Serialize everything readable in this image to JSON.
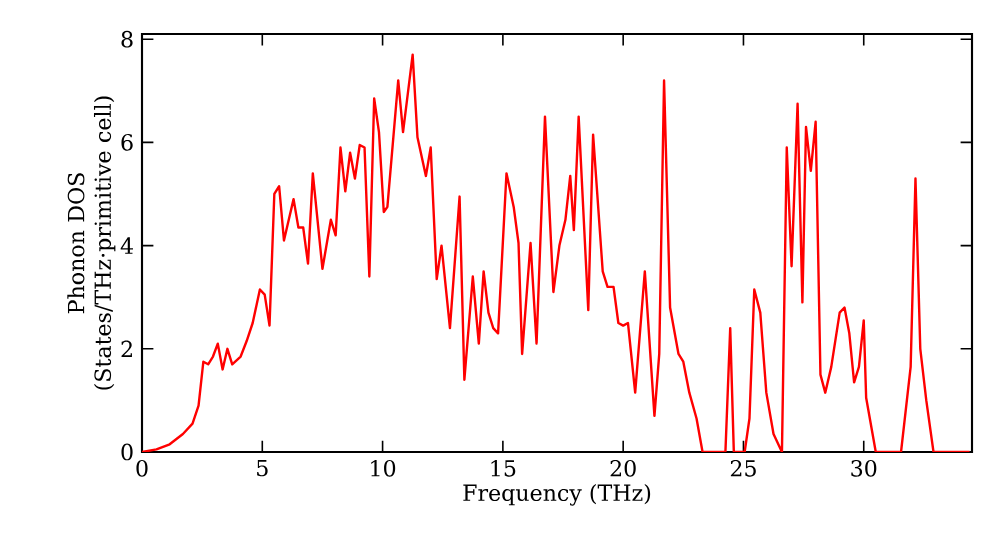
{
  "chart_data": {
    "type": "line",
    "xlabel": "Frequency (THz)",
    "ylabel": "Phonon DOS (States/THz·primitive cell)",
    "xlim": [
      0,
      34.5
    ],
    "ylim": [
      0,
      8.1
    ],
    "xticks": [
      0,
      5,
      10,
      15,
      20,
      25,
      30
    ],
    "yticks": [
      0,
      2,
      4,
      6,
      8
    ],
    "grid": false,
    "marker": "none",
    "line_style": "solid",
    "series": [
      {
        "color": "#ff0000",
        "x": [
          0,
          0.6,
          1.15,
          1.7,
          2.1,
          2.35,
          2.55,
          2.75,
          2.95,
          3.15,
          3.35,
          3.55,
          3.75,
          4.1,
          4.35,
          4.6,
          4.9,
          5.1,
          5.3,
          5.5,
          5.7,
          5.9,
          6.1,
          6.3,
          6.5,
          6.7,
          6.9,
          7.1,
          7.5,
          7.85,
          8.05,
          8.25,
          8.45,
          8.65,
          8.85,
          9.05,
          9.25,
          9.45,
          9.65,
          9.85,
          10.05,
          10.2,
          10.65,
          10.85,
          11.25,
          11.45,
          11.8,
          12.0,
          12.25,
          12.45,
          12.8,
          13.2,
          13.4,
          13.75,
          14.0,
          14.2,
          14.4,
          14.6,
          14.8,
          15.15,
          15.45,
          15.65,
          15.8,
          16.15,
          16.4,
          16.75,
          17.1,
          17.35,
          17.6,
          17.8,
          17.95,
          18.15,
          18.55,
          18.75,
          19.15,
          19.35,
          19.6,
          19.8,
          20.0,
          20.2,
          20.5,
          20.9,
          21.3,
          21.5,
          21.7,
          21.95,
          22.3,
          22.5,
          22.75,
          23.05,
          23.3,
          24.25,
          24.45,
          24.6,
          25.05,
          25.25,
          25.45,
          25.7,
          25.95,
          26.25,
          26.6,
          26.8,
          27.0,
          27.25,
          27.45,
          27.6,
          27.8,
          28.0,
          28.2,
          28.4,
          28.65,
          29.0,
          29.2,
          29.4,
          29.6,
          29.8,
          30.0,
          30.1,
          30.5,
          31.55,
          31.95,
          32.15,
          32.35,
          32.6,
          32.9,
          34.4
        ],
        "values": [
          0,
          0.05,
          0.15,
          0.35,
          0.55,
          0.9,
          1.75,
          1.7,
          1.85,
          2.1,
          1.6,
          2.0,
          1.7,
          1.85,
          2.15,
          2.5,
          3.15,
          3.05,
          2.45,
          5.0,
          5.15,
          4.1,
          4.5,
          4.9,
          4.35,
          4.35,
          3.65,
          5.4,
          3.55,
          4.5,
          4.2,
          5.9,
          5.05,
          5.8,
          5.3,
          5.95,
          5.9,
          3.4,
          6.85,
          6.2,
          4.65,
          4.75,
          7.2,
          6.2,
          7.7,
          6.1,
          5.35,
          5.9,
          3.35,
          4.0,
          2.4,
          4.95,
          1.4,
          3.4,
          2.1,
          3.5,
          2.7,
          2.4,
          2.3,
          5.4,
          4.75,
          4.05,
          1.9,
          4.05,
          2.1,
          6.5,
          3.1,
          4.0,
          4.5,
          5.35,
          4.3,
          6.5,
          2.75,
          6.15,
          3.5,
          3.2,
          3.2,
          2.5,
          2.45,
          2.5,
          1.15,
          3.5,
          0.7,
          1.9,
          7.2,
          2.8,
          1.9,
          1.75,
          1.15,
          0.65,
          0,
          0,
          2.4,
          0,
          0,
          0.65,
          3.15,
          2.7,
          1.15,
          0.35,
          0,
          5.9,
          3.6,
          6.75,
          2.9,
          6.3,
          5.45,
          6.4,
          1.5,
          1.15,
          1.65,
          2.7,
          2.8,
          2.3,
          1.35,
          1.65,
          2.55,
          1.05,
          0,
          0,
          1.65,
          5.3,
          2.0,
          1.0,
          0,
          0
        ]
      }
    ]
  }
}
